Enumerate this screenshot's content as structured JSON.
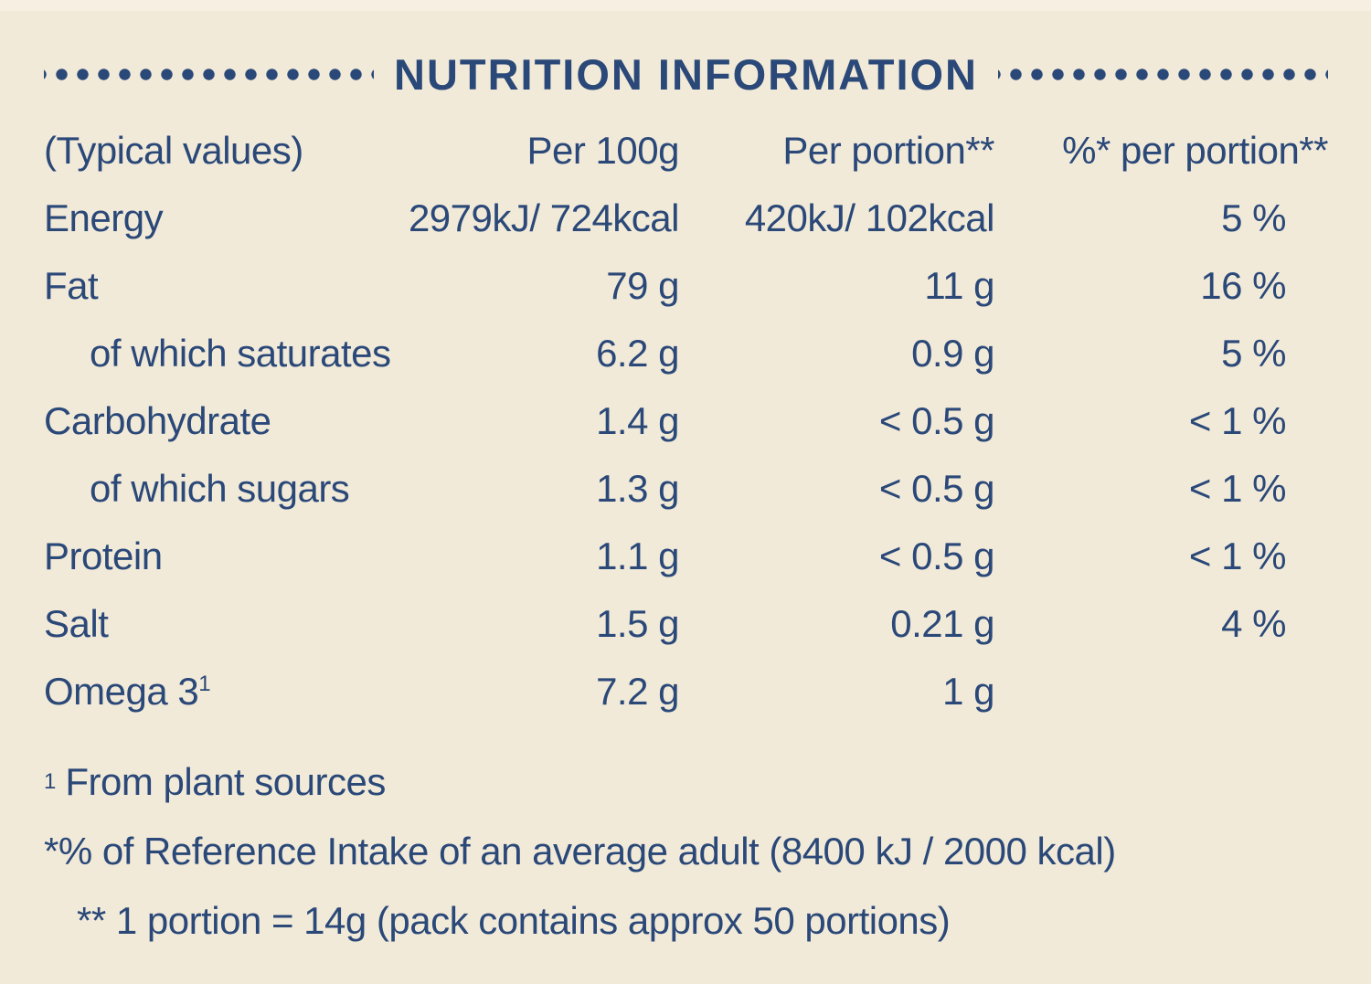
{
  "colors": {
    "background": "#f2ead9",
    "text": "#2a4878"
  },
  "title": "NUTRITION INFORMATION",
  "table": {
    "headers": [
      "(Typical values)",
      "Per 100g",
      "Per portion**",
      "%* per portion**"
    ],
    "rows": [
      {
        "label": "Energy",
        "sup": "",
        "per_100g": "2979kJ/ 724kcal",
        "per_portion": "420kJ/ 102kcal",
        "percent_per_portion": "5 %"
      },
      {
        "label": "Fat",
        "sup": "",
        "per_100g": "79 g",
        "per_portion": "11 g",
        "percent_per_portion": "16 %"
      },
      {
        "label": "of which saturates",
        "sup": "",
        "per_100g": "6.2 g",
        "per_portion": "0.9 g",
        "percent_per_portion": "5 %"
      },
      {
        "label": "Carbohydrate",
        "sup": "",
        "per_100g": "1.4 g",
        "per_portion": "< 0.5 g",
        "percent_per_portion": "< 1 %"
      },
      {
        "label": "of which sugars",
        "sup": "",
        "per_100g": "1.3 g",
        "per_portion": "< 0.5 g",
        "percent_per_portion": "< 1 %"
      },
      {
        "label": "Protein",
        "sup": "",
        "per_100g": "1.1 g",
        "per_portion": "< 0.5 g",
        "percent_per_portion": "< 1 %"
      },
      {
        "label": "Salt",
        "sup": "",
        "per_100g": "1.5 g",
        "per_portion": "0.21 g",
        "percent_per_portion": "4 %"
      },
      {
        "label": "Omega 3",
        "sup": "1",
        "per_100g": "7.2 g",
        "per_portion": "1 g",
        "percent_per_portion": ""
      }
    ]
  },
  "footnotes": [
    {
      "sup": "1",
      "text": "From plant sources"
    },
    {
      "sup": "",
      "text": "*% of Reference Intake of an average adult (8400 kJ / 2000 kcal)"
    },
    {
      "sup": "",
      "text": "** 1 portion = 14g (pack contains approx 50 portions)"
    }
  ]
}
